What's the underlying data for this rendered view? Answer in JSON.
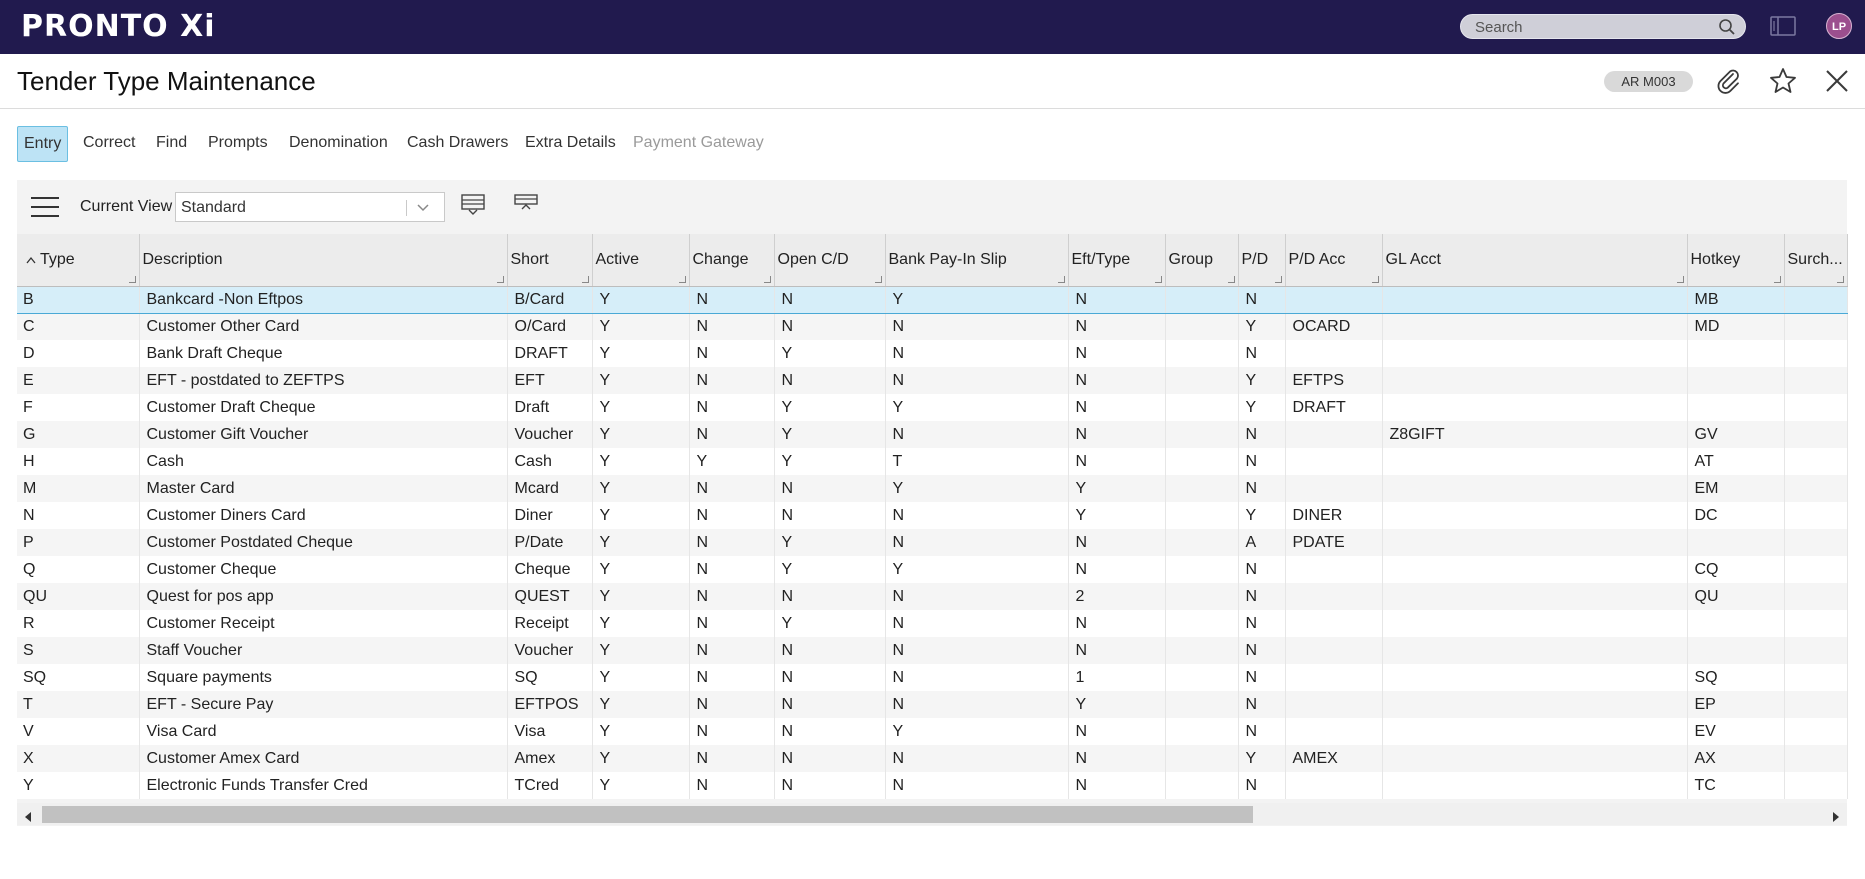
{
  "app": {
    "logo": "PRONTO Xi",
    "search_placeholder": "Search",
    "avatar": "LP"
  },
  "header": {
    "title": "Tender Type Maintenance",
    "code": "AR M003"
  },
  "tabs": [
    {
      "label": "Entry",
      "state": "active"
    },
    {
      "label": "Correct",
      "state": "normal"
    },
    {
      "label": "Find",
      "state": "normal"
    },
    {
      "label": "Prompts",
      "state": "normal"
    },
    {
      "label": "Denomination",
      "state": "normal"
    },
    {
      "label": "Cash Drawers",
      "state": "normal"
    },
    {
      "label": "Extra Details",
      "state": "normal"
    },
    {
      "label": "Payment Gateway",
      "state": "disabled"
    }
  ],
  "grid": {
    "view_label": "Current View",
    "view_value": "Standard",
    "columns": [
      "Type",
      "Description",
      "Short",
      "Active",
      "Change",
      "Open C/D",
      "Bank Pay-In Slip",
      "Eft/Type",
      "Group",
      "P/D",
      "P/D Acc",
      "GL Acct",
      "Hotkey",
      "Surch..."
    ],
    "rows": [
      [
        "B",
        "Bankcard -Non Eftpos",
        "B/Card",
        "Y",
        "N",
        "N",
        "Y",
        "N",
        "",
        "N",
        "",
        "",
        "MB",
        ""
      ],
      [
        "C",
        "Customer Other Card",
        "O/Card",
        "Y",
        "N",
        "N",
        "N",
        "N",
        "",
        "Y",
        "OCARD",
        "",
        "MD",
        ""
      ],
      [
        "D",
        "Bank Draft Cheque",
        "DRAFT",
        "Y",
        "N",
        "Y",
        "N",
        "N",
        "",
        "N",
        "",
        "",
        "",
        ""
      ],
      [
        "E",
        "EFT - postdated to ZEFTPS",
        "EFT",
        "Y",
        "N",
        "N",
        "N",
        "N",
        "",
        "Y",
        "EFTPS",
        "",
        "",
        ""
      ],
      [
        "F",
        "Customer Draft Cheque",
        "Draft",
        "Y",
        "N",
        "Y",
        "Y",
        "N",
        "",
        "Y",
        "DRAFT",
        "",
        "",
        ""
      ],
      [
        "G",
        "Customer Gift Voucher",
        "Voucher",
        "Y",
        "N",
        "Y",
        "N",
        "N",
        "",
        "N",
        "",
        "Z8GIFT",
        "GV",
        ""
      ],
      [
        "H",
        "Cash",
        "Cash",
        "Y",
        "Y",
        "Y",
        "T",
        "N",
        "",
        "N",
        "",
        "",
        "AT",
        ""
      ],
      [
        "M",
        "Master Card",
        "Mcard",
        "Y",
        "N",
        "N",
        "Y",
        "Y",
        "",
        "N",
        "",
        "",
        "EM",
        ""
      ],
      [
        "N",
        "Customer Diners Card",
        "Diner",
        "Y",
        "N",
        "N",
        "N",
        "Y",
        "",
        "Y",
        "DINER",
        "",
        "DC",
        ""
      ],
      [
        "P",
        "Customer Postdated Cheque",
        "P/Date",
        "Y",
        "N",
        "Y",
        "N",
        "N",
        "",
        "A",
        "PDATE",
        "",
        "",
        ""
      ],
      [
        "Q",
        "Customer Cheque",
        "Cheque",
        "Y",
        "N",
        "Y",
        "Y",
        "N",
        "",
        "N",
        "",
        "",
        "CQ",
        ""
      ],
      [
        "QU",
        "Quest for pos app",
        "QUEST",
        "Y",
        "N",
        "N",
        "N",
        "2",
        "",
        "N",
        "",
        "",
        "QU",
        ""
      ],
      [
        "R",
        "Customer Receipt",
        "Receipt",
        "Y",
        "N",
        "Y",
        "N",
        "N",
        "",
        "N",
        "",
        "",
        "",
        ""
      ],
      [
        "S",
        "Staff Voucher",
        "Voucher",
        "Y",
        "N",
        "N",
        "N",
        "N",
        "",
        "N",
        "",
        "",
        "",
        ""
      ],
      [
        "SQ",
        "Square payments",
        "SQ",
        "Y",
        "N",
        "N",
        "N",
        "1",
        "",
        "N",
        "",
        "",
        "SQ",
        ""
      ],
      [
        "T",
        "EFT - Secure Pay",
        "EFTPOS",
        "Y",
        "N",
        "N",
        "N",
        "Y",
        "",
        "N",
        "",
        "",
        "EP",
        ""
      ],
      [
        "V",
        "Visa Card",
        "Visa",
        "Y",
        "N",
        "N",
        "Y",
        "N",
        "",
        "N",
        "",
        "",
        "EV",
        ""
      ],
      [
        "X",
        "Customer Amex Card",
        "Amex",
        "Y",
        "N",
        "N",
        "N",
        "N",
        "",
        "Y",
        "AMEX",
        "",
        "AX",
        ""
      ],
      [
        "Y",
        "Electronic Funds Transfer Cred",
        "TCred",
        "Y",
        "N",
        "N",
        "N",
        "N",
        "",
        "N",
        "",
        "",
        "TC",
        ""
      ]
    ],
    "selected_row": 0,
    "sorted_column": "Type",
    "sort_direction": "ascending"
  },
  "colors": {
    "topbar": "#211a4e",
    "avatar": "#9b4f8e",
    "selection": "#d6eef9",
    "active_tab": "#bde3f5"
  },
  "icons": [
    "search-icon",
    "panel-icon",
    "paperclip-icon",
    "star-icon",
    "close-icon",
    "hamburger-menu-icon",
    "chevron-down-icon",
    "sort-ascending-icon",
    "expand-rows-icon",
    "collapse-rows-icon",
    "scroll-left-icon",
    "scroll-right-icon"
  ]
}
